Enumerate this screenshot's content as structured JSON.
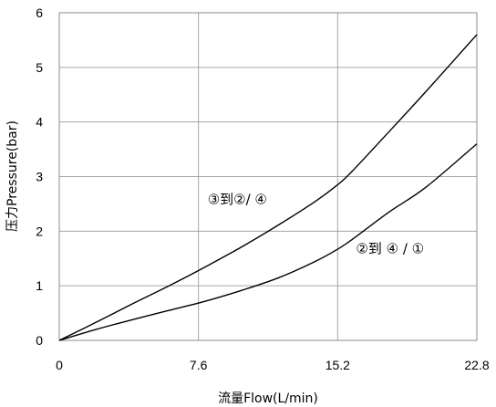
{
  "chart_data": {
    "type": "line",
    "title": "",
    "xlabel": "流量Flow(L/min)",
    "ylabel": "压力Pressure(bar)",
    "xlim": [
      0,
      22.8
    ],
    "ylim": [
      0,
      6
    ],
    "xticks": [
      0,
      7.6,
      15.2,
      22.8
    ],
    "xtick_labels": [
      "0",
      "7.6",
      "15.2",
      "22.8"
    ],
    "yticks": [
      0,
      1,
      2,
      3,
      4,
      5,
      6
    ],
    "ytick_labels": [
      "0",
      "1",
      "2",
      "3",
      "4",
      "5",
      "6"
    ],
    "grid": true,
    "legend": "none",
    "series": [
      {
        "x": [
          0,
          2,
          4,
          6,
          8,
          10,
          12,
          14,
          15.2,
          16,
          18,
          20,
          22.8
        ],
        "y": [
          0,
          0.33,
          0.67,
          1.0,
          1.35,
          1.72,
          2.12,
          2.55,
          2.85,
          3.1,
          3.82,
          4.55,
          5.6
        ]
      },
      {
        "x": [
          0,
          2,
          4,
          6,
          8,
          10,
          12,
          14,
          15.2,
          16,
          18,
          20,
          22.8
        ],
        "y": [
          0,
          0.2,
          0.38,
          0.55,
          0.72,
          0.92,
          1.15,
          1.45,
          1.67,
          1.85,
          2.35,
          2.8,
          3.6
        ]
      }
    ],
    "annotations": [
      {
        "text": "③到②/ ④",
        "x": 8.1,
        "y": 2.5
      },
      {
        "text": "②到 ④ / ①",
        "x": 16.2,
        "y": 1.6
      }
    ]
  }
}
